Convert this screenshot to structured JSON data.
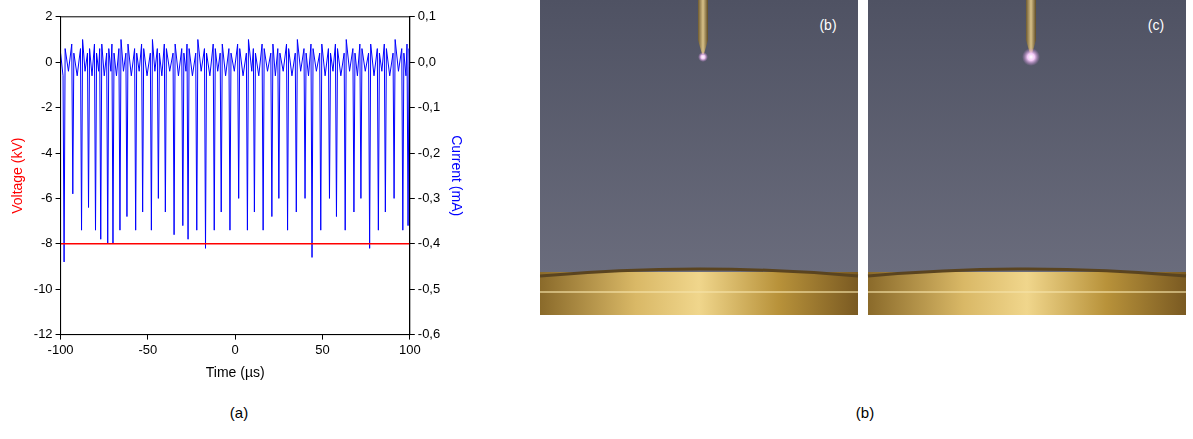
{
  "chart_data": {
    "type": "line",
    "xlabel": "Time (µs)",
    "ylabel": "Voltage (kV)",
    "y2label": "Current (mA)",
    "caption": "(a)",
    "xlim": [
      -100,
      100
    ],
    "xticks": [
      -100,
      -50,
      0,
      50,
      100
    ],
    "ylim": [
      -12,
      2
    ],
    "yticks": [
      -12,
      -10,
      -8,
      -6,
      -4,
      -2,
      0,
      2
    ],
    "y2lim": [
      -0.6,
      0.1
    ],
    "y2ticks": [
      {
        "value": -0.6,
        "label": "-0,6"
      },
      {
        "value": -0.5,
        "label": "-0,5"
      },
      {
        "value": -0.4,
        "label": "-0,4"
      },
      {
        "value": -0.3,
        "label": "-0,3"
      },
      {
        "value": -0.2,
        "label": "-0,2"
      },
      {
        "value": -0.1,
        "label": "-0,1"
      },
      {
        "value": 0,
        "label": "0,0"
      },
      {
        "value": 0.1,
        "label": "0,1"
      }
    ],
    "grid": false,
    "series": [
      {
        "color": "#ff0000",
        "x": [
          -100,
          100
        ],
        "values": [
          -8,
          -8
        ]
      },
      {
        "color": "#0000ff",
        "axis": "y2",
        "x": [
          -100,
          -98.6,
          -98,
          -97.4,
          -95.5,
          -93.6,
          -93,
          -92.4,
          -90.5,
          -88.6,
          -88,
          -87.4,
          -86,
          -84.6,
          -84,
          -83.4,
          -82,
          -80.6,
          -80,
          -79.4,
          -78.2,
          -77.6,
          -77,
          -76.4,
          -75,
          -73.6,
          -73,
          -72.4,
          -71.2,
          -70.6,
          -70,
          -69.4,
          -68,
          -66.6,
          -66,
          -65.4,
          -64,
          -62.6,
          -62,
          -61.4,
          -59.5,
          -57.6,
          -57,
          -56.4,
          -55,
          -53.6,
          -53,
          -52.4,
          -50.5,
          -48.6,
          -48,
          -47.4,
          -46,
          -44.6,
          -44,
          -43.4,
          -42,
          -40.6,
          -40,
          -39.4,
          -37.5,
          -35.6,
          -35,
          -34.4,
          -32.5,
          -30.6,
          -30,
          -29.4,
          -28.2,
          -27.6,
          -27,
          -26.4,
          -24.5,
          -22.6,
          -22,
          -21.4,
          -19.5,
          -17.6,
          -17,
          -16.4,
          -14.5,
          -12.6,
          -12,
          -11.4,
          -10,
          -8.6,
          -8,
          -7.4,
          -5.5,
          -3.6,
          -3,
          -2.4,
          -0.5,
          1.4,
          2,
          2.6,
          4.5,
          6.4,
          7,
          7.6,
          9.5,
          10.4,
          11,
          11.6,
          13.5,
          15.4,
          16,
          16.6,
          18.5,
          20.4,
          21,
          21.6,
          23,
          24.4,
          25,
          25.6,
          27.5,
          29.4,
          30,
          30.6,
          32.5,
          34.4,
          35,
          35.6,
          37.5,
          39.4,
          40,
          40.6,
          42,
          43.4,
          44,
          44.6,
          46.5,
          48.4,
          49,
          49.6,
          51.5,
          53.4,
          54,
          54.6,
          56,
          57.4,
          58,
          58.6,
          60.5,
          62.4,
          63,
          63.6,
          65.5,
          67.4,
          68,
          68.6,
          70,
          71.4,
          72,
          72.6,
          74.5,
          76.4,
          77,
          77.6,
          79.5,
          81.4,
          82,
          82.6,
          84,
          85.4,
          86,
          86.6,
          88.5,
          90.4,
          91,
          91.6,
          93.5,
          95.4,
          96,
          96.6,
          97.8,
          98.4,
          99,
          99.6,
          100
        ],
        "values": [
          0.02,
          -0.03,
          -0.44,
          0.03,
          -0.02,
          0.04,
          -0.29,
          0.02,
          -0.03,
          0.03,
          -0.37,
          0.05,
          -0.02,
          0.02,
          -0.32,
          0.03,
          -0.03,
          0.04,
          -0.37,
          0.02,
          -0.02,
          0.03,
          -0.39,
          0.04,
          -0.03,
          0.02,
          -0.4,
          0.03,
          -0.02,
          0.04,
          -0.4,
          0.02,
          -0.03,
          0.03,
          -0.37,
          0.05,
          -0.02,
          0.02,
          -0.34,
          0.04,
          -0.03,
          0.03,
          -0.37,
          0.02,
          -0.02,
          0.04,
          -0.33,
          0.03,
          -0.03,
          0.02,
          -0.37,
          0.05,
          -0.02,
          0.03,
          -0.3,
          0.02,
          -0.03,
          0.04,
          -0.33,
          0.03,
          -0.02,
          0.02,
          -0.38,
          0.04,
          -0.03,
          0.03,
          -0.36,
          0.02,
          -0.02,
          0.04,
          -0.39,
          0.03,
          -0.03,
          0.02,
          -0.37,
          0.05,
          -0.02,
          0.03,
          -0.41,
          0.02,
          -0.03,
          0.04,
          -0.37,
          0.03,
          -0.02,
          0.02,
          -0.33,
          0.04,
          -0.03,
          0.03,
          -0.37,
          0.02,
          -0.02,
          0.04,
          -0.3,
          0.03,
          -0.03,
          0.02,
          -0.37,
          0.05,
          -0.02,
          0.03,
          -0.33,
          0.02,
          -0.03,
          0.04,
          -0.37,
          0.03,
          -0.02,
          0.02,
          -0.34,
          0.04,
          -0.03,
          0.03,
          -0.3,
          0.02,
          -0.02,
          0.04,
          -0.37,
          0.03,
          -0.03,
          0.02,
          -0.33,
          0.05,
          -0.02,
          0.03,
          -0.3,
          0.02,
          -0.03,
          0.04,
          -0.43,
          0.03,
          -0.02,
          0.02,
          -0.37,
          0.04,
          -0.03,
          0.03,
          -0.3,
          0.02,
          -0.02,
          0.04,
          -0.34,
          0.03,
          -0.03,
          0.02,
          -0.37,
          0.05,
          -0.02,
          0.03,
          -0.33,
          0.02,
          -0.03,
          0.04,
          -0.3,
          0.03,
          -0.02,
          0.02,
          -0.41,
          0.04,
          -0.03,
          0.03,
          -0.37,
          0.02,
          -0.02,
          0.04,
          -0.33,
          0.03,
          -0.03,
          0.02,
          -0.3,
          0.05,
          -0.02,
          0.03,
          -0.37,
          0.02,
          -0.03,
          0.04,
          -0.36,
          0.03,
          -0.01
        ]
      }
    ]
  },
  "photos": {
    "caption": "(b)",
    "panels": [
      "(b)",
      "(c)"
    ]
  }
}
